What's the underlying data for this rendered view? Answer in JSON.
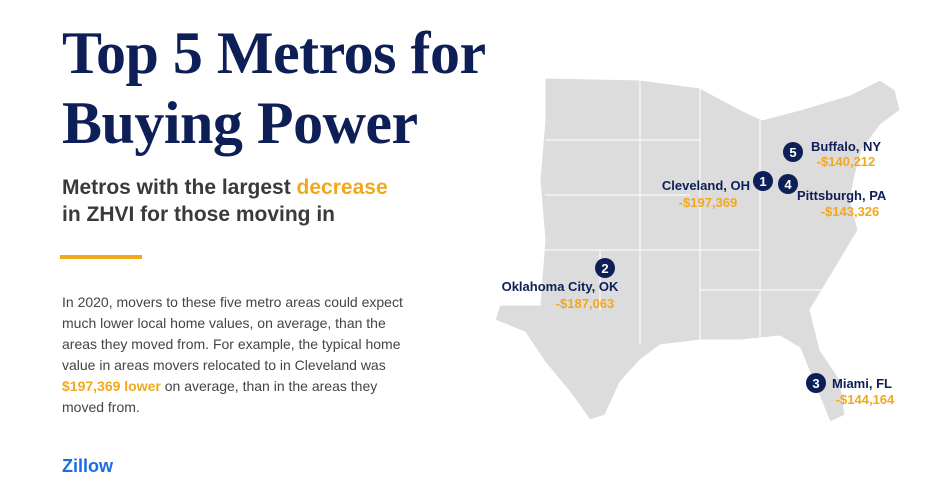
{
  "header": {
    "title_lines": [
      "Top 5 Metros for",
      "Buying Power"
    ]
  },
  "subtitle": {
    "before": "Metros with the largest",
    "highlight": "decrease",
    "line2": "in ZHVI for those moving in"
  },
  "body": {
    "lines": [
      "In 2020, movers to these five metro areas could expect",
      "much lower local home values, on average, than the",
      "areas they moved from. For example, the typical home",
      "value in areas movers relocated to in Cleveland was"
    ],
    "highlight": "$197,369 lower",
    "after_highlight": "on average, than in the areas they",
    "last_line": "moved from."
  },
  "metros": [
    {
      "rank": "1",
      "name": "Cleveland, OH",
      "value": "-$197,369"
    },
    {
      "rank": "2",
      "name": "Oklahoma City, OK",
      "value": "-$187,063"
    },
    {
      "rank": "3",
      "name": "Miami, FL",
      "value": "-$144,164"
    },
    {
      "rank": "4",
      "name": "Pittsburgh, PA",
      "value": "-$143,326"
    },
    {
      "rank": "5",
      "name": "Buffalo, NY",
      "value": "-$140,212"
    }
  ],
  "logo": "Zillow"
}
